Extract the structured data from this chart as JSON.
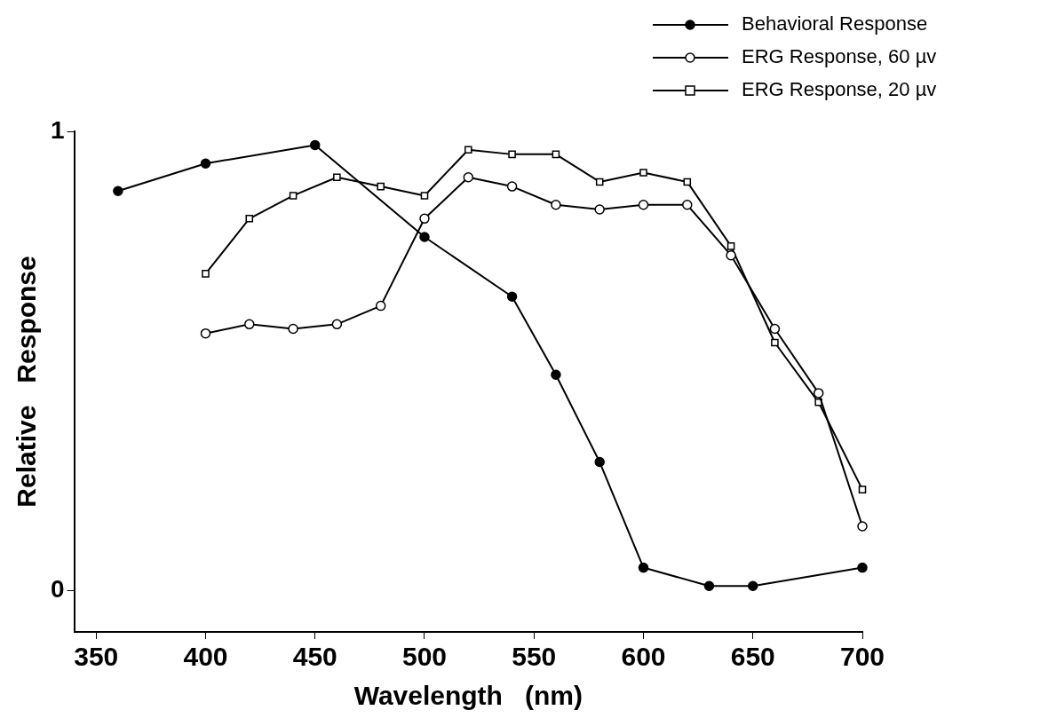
{
  "chart_data": {
    "type": "line",
    "xlabel": "Wavelength   (nm)",
    "ylabel": "Relative   Response",
    "xlim": [
      340,
      700
    ],
    "xticks": [
      350,
      400,
      450,
      500,
      550,
      600,
      650,
      700
    ],
    "ylim": [
      -0.09,
      1
    ],
    "yticks": [
      0,
      1
    ],
    "grid": false,
    "legend": "top right",
    "line_style": "solid",
    "series": [
      {
        "name": "Behavioral Response",
        "color": "#000000",
        "marker": "circle",
        "x": [
          360,
          400,
          450,
          500,
          540,
          560,
          580,
          600,
          630,
          650,
          700
        ],
        "values": [
          0.87,
          0.93,
          0.97,
          0.77,
          0.64,
          0.47,
          0.28,
          0.05,
          0.01,
          0.01,
          0.05
        ]
      },
      {
        "name": "ERG Response, 60 µv",
        "color": "#000000",
        "marker": "circle",
        "x": [
          400,
          420,
          440,
          460,
          480,
          500,
          520,
          540,
          560,
          580,
          600,
          620,
          640,
          660,
          680,
          700
        ],
        "values": [
          0.56,
          0.58,
          0.57,
          0.58,
          0.62,
          0.81,
          0.9,
          0.88,
          0.84,
          0.83,
          0.84,
          0.84,
          0.73,
          0.57,
          0.43,
          0.14
        ]
      },
      {
        "name": "ERG Response, 20 µv",
        "color": "#000000",
        "marker": "square",
        "x": [
          400,
          420,
          440,
          460,
          480,
          500,
          520,
          540,
          560,
          580,
          600,
          620,
          640,
          660,
          680,
          700
        ],
        "values": [
          0.69,
          0.81,
          0.86,
          0.9,
          0.88,
          0.86,
          0.96,
          0.95,
          0.95,
          0.89,
          0.91,
          0.89,
          0.75,
          0.54,
          0.41,
          0.22
        ]
      }
    ]
  }
}
